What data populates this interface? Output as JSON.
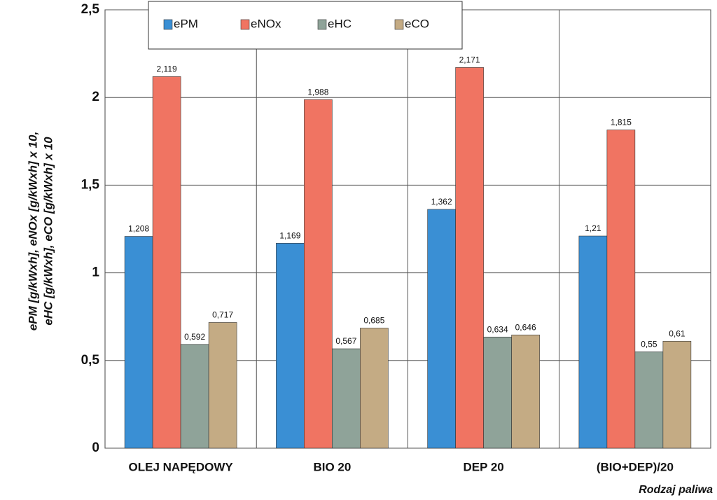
{
  "chart_data": {
    "type": "bar",
    "y_label": [
      "ePM [g/kWxh], eNOx [g/kWxh] x 10,",
      "eHC [g/kWxh], eCO [g/kWxh] x 10"
    ],
    "x_label": "Rodzaj paliwa",
    "categories": [
      "OLEJ NAPĘDOWY",
      "BIO 20",
      "DEP 20",
      "(BIO+DEP)/20"
    ],
    "series": [
      {
        "name": "ePM",
        "color": "#3a8fd4",
        "values": [
          1.208,
          1.169,
          1.362,
          1.21
        ],
        "value_labels": [
          "1,208",
          "1,169",
          "1,362",
          "1,21"
        ]
      },
      {
        "name": "eNOx",
        "color": "#f07462",
        "values": [
          2.119,
          1.988,
          2.171,
          1.815
        ],
        "value_labels": [
          "2,119",
          "1,988",
          "2,171",
          "1,815"
        ]
      },
      {
        "name": "eHC",
        "color": "#8fa399",
        "values": [
          0.592,
          0.567,
          0.634,
          0.55
        ],
        "value_labels": [
          "0,592",
          "0,567",
          "0,634",
          "0,55"
        ]
      },
      {
        "name": "eCO",
        "color": "#c4ab84",
        "values": [
          0.717,
          0.685,
          0.646,
          0.61
        ],
        "value_labels": [
          "0,717",
          "0,685",
          "0,646",
          "0,61"
        ]
      }
    ],
    "ylim": [
      0,
      2.5
    ],
    "yticks": [
      0,
      {
        "value": 0.5,
        "label": "0,5"
      },
      1,
      {
        "value": 1.5,
        "label": "1,5"
      },
      2,
      {
        "value": 2.5,
        "label": "2,5"
      }
    ],
    "grid": true
  }
}
